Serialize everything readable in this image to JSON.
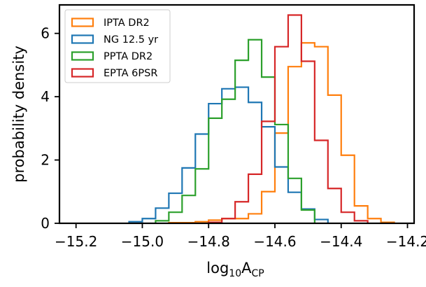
{
  "chart_data": {
    "type": "histogram-step",
    "xlabel": {
      "base": "log",
      "base_sub": "10",
      "var": "A",
      "var_sub": "CP"
    },
    "ylabel": "probability density",
    "xlim": [
      -15.25,
      -14.18
    ],
    "ylim": [
      0,
      6.9
    ],
    "xticks": [
      -15.2,
      -15.0,
      -14.8,
      -14.6,
      -14.4,
      -14.2
    ],
    "xtick_labels": [
      "−15.2",
      "−15.0",
      "−14.8",
      "−14.6",
      "−14.4",
      "−14.2"
    ],
    "yticks": [
      0,
      2,
      4,
      6
    ],
    "ytick_labels": [
      "0",
      "2",
      "4",
      "6"
    ],
    "legend_position": "top-left",
    "legend_frame": true,
    "series": [
      {
        "name": "IPTA DR2",
        "color": "#ff7f0e",
        "edges": [
          -14.92,
          -14.88,
          -14.84,
          -14.8,
          -14.76,
          -14.72,
          -14.68,
          -14.64,
          -14.6,
          -14.56,
          -14.52,
          -14.48,
          -14.44,
          -14.4,
          -14.36,
          -14.32,
          -14.28,
          -14.24
        ],
        "values": [
          0.02,
          0.02,
          0.05,
          0.1,
          0.15,
          0.15,
          0.3,
          1.0,
          2.85,
          4.95,
          5.7,
          5.58,
          4.05,
          2.15,
          0.55,
          0.15,
          0.03
        ]
      },
      {
        "name": "NG 12.5 yr",
        "color": "#1f77b4",
        "edges": [
          -15.04,
          -15.0,
          -14.96,
          -14.92,
          -14.88,
          -14.84,
          -14.8,
          -14.76,
          -14.72,
          -14.68,
          -14.64,
          -14.6,
          -14.56,
          -14.52,
          -14.48,
          -14.44
        ],
        "values": [
          0.05,
          0.15,
          0.48,
          0.95,
          1.75,
          2.82,
          3.78,
          4.25,
          4.3,
          3.82,
          3.05,
          1.78,
          0.98,
          0.45,
          0.12
        ]
      },
      {
        "name": "PPTA DR2",
        "color": "#2ca02c",
        "edges": [
          -14.96,
          -14.92,
          -14.88,
          -14.84,
          -14.8,
          -14.76,
          -14.72,
          -14.68,
          -14.64,
          -14.6,
          -14.56,
          -14.52,
          -14.48
        ],
        "values": [
          0.08,
          0.35,
          0.88,
          1.72,
          3.32,
          3.92,
          5.15,
          5.8,
          4.62,
          3.12,
          1.42,
          0.42
        ]
      },
      {
        "name": "EPTA 6PSR",
        "color": "#d62728",
        "edges": [
          -14.8,
          -14.76,
          -14.72,
          -14.68,
          -14.64,
          -14.6,
          -14.56,
          -14.52,
          -14.48,
          -14.44,
          -14.4,
          -14.36,
          -14.32
        ],
        "values": [
          0.03,
          0.15,
          0.68,
          1.55,
          3.22,
          5.58,
          6.58,
          5.12,
          2.62,
          1.1,
          0.35,
          0.08
        ]
      }
    ]
  }
}
